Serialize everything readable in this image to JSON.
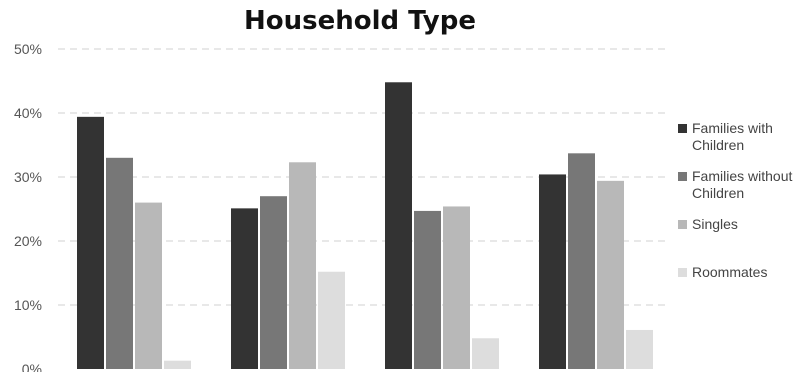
{
  "chart_data": {
    "type": "bar",
    "title": "Household Type",
    "xlabel": "",
    "ylabel": "",
    "categories": [
      "",
      "",
      "",
      ""
    ],
    "ylim": [
      0,
      50
    ],
    "yticks": [
      "0%",
      "10%",
      "20%",
      "30%",
      "40%",
      "50%"
    ],
    "grid": true,
    "legend_position": "right",
    "series": [
      {
        "name": "Families with Children",
        "color": "#333333",
        "values": [
          39.4,
          25.1,
          44.8,
          30.4
        ]
      },
      {
        "name": "Families without Children",
        "color": "#777777",
        "values": [
          33.0,
          27.0,
          24.7,
          33.7
        ]
      },
      {
        "name": "Singles",
        "color": "#b8b8b8",
        "values": [
          26.0,
          32.3,
          25.4,
          29.4
        ]
      },
      {
        "name": "Roommates",
        "color": "#dddddd",
        "values": [
          1.3,
          15.2,
          4.8,
          6.1
        ]
      }
    ]
  }
}
